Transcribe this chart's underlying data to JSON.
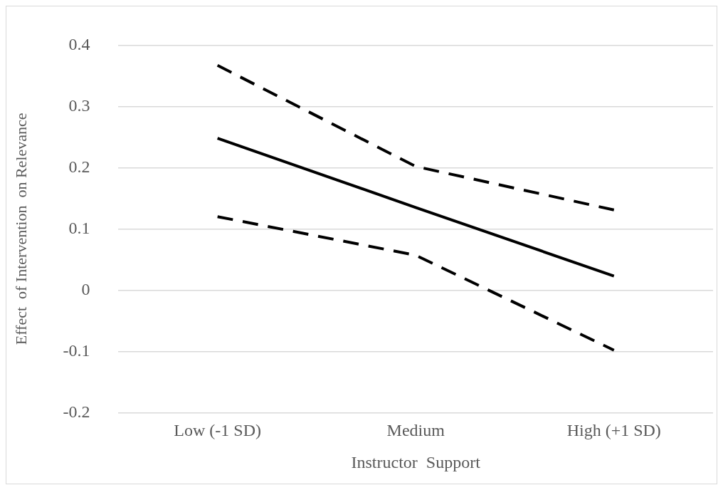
{
  "chart_data": {
    "type": "line",
    "xlabel": "Instructor  Support",
    "ylabel": "Effect  of Intervention  on Relevance",
    "categories": [
      "Low (-1 SD)",
      "Medium",
      "High (+1 SD)"
    ],
    "series": [
      {
        "color": "#000000",
        "values": [
          0.367,
          0.202,
          0.131
        ],
        "line_style": "dashed"
      },
      {
        "color": "#000000",
        "values": [
          0.248,
          0.135,
          0.023
        ],
        "line_style": "solid"
      },
      {
        "color": "#000000",
        "values": [
          0.12,
          0.057,
          -0.098
        ],
        "line_style": "dashed"
      }
    ],
    "ylim": [
      -0.2,
      0.4
    ],
    "yticks": [
      -0.2,
      -0.1,
      0,
      0.1,
      0.2,
      0.3,
      0.4
    ],
    "grid": "y",
    "legend": false,
    "marker": "none"
  }
}
